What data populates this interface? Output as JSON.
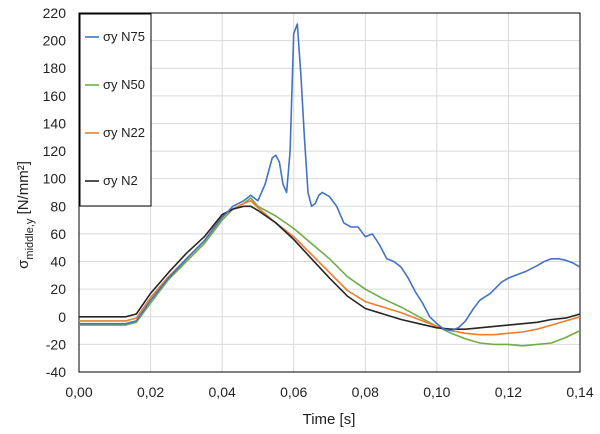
{
  "chart_data": {
    "type": "line",
    "xlabel": "Time [s]",
    "ylabel_main": "σ",
    "ylabel_sub": "middle,y",
    "ylabel_unit": " [N/mm²]",
    "xlim": [
      0,
      0.14
    ],
    "ylim": [
      -40,
      220
    ],
    "x_ticks": [
      0,
      0.02,
      0.04,
      0.06,
      0.08,
      0.1,
      0.12,
      0.14
    ],
    "x_tick_labels": [
      "0,00",
      "0,02",
      "0,04",
      "0,06",
      "0,08",
      "0,10",
      "0,12",
      "0,14"
    ],
    "y_ticks": [
      -40,
      -20,
      0,
      20,
      40,
      60,
      80,
      100,
      120,
      140,
      160,
      180,
      200,
      220
    ],
    "y_tick_labels": [
      "-40",
      "-20",
      "0",
      "20",
      "40",
      "60",
      "80",
      "100",
      "120",
      "140",
      "160",
      "180",
      "200",
      "220"
    ],
    "grid": true,
    "legend_position": "top-left",
    "series": [
      {
        "name": "σy N75",
        "color": "#4472c4",
        "x": [
          0,
          0.013,
          0.016,
          0.02,
          0.025,
          0.03,
          0.035,
          0.04,
          0.043,
          0.046,
          0.048,
          0.05,
          0.052,
          0.054,
          0.055,
          0.056,
          0.057,
          0.058,
          0.059,
          0.06,
          0.061,
          0.062,
          0.063,
          0.064,
          0.065,
          0.066,
          0.067,
          0.068,
          0.07,
          0.072,
          0.074,
          0.076,
          0.078,
          0.08,
          0.082,
          0.084,
          0.086,
          0.088,
          0.09,
          0.092,
          0.094,
          0.096,
          0.098,
          0.1,
          0.102,
          0.104,
          0.106,
          0.108,
          0.11,
          0.112,
          0.115,
          0.118,
          0.12,
          0.122,
          0.125,
          0.128,
          0.13,
          0.132,
          0.134,
          0.136,
          0.138,
          0.14
        ],
        "y": [
          -5,
          -5,
          -3,
          12,
          28,
          42,
          55,
          72,
          80,
          84,
          88,
          84,
          96,
          115,
          117,
          112,
          96,
          90,
          120,
          205,
          212,
          175,
          130,
          90,
          80,
          82,
          88,
          90,
          87,
          80,
          68,
          65,
          65,
          58,
          60,
          52,
          42,
          40,
          36,
          28,
          18,
          10,
          0,
          -5,
          -9,
          -10,
          -8,
          -3,
          5,
          12,
          17,
          25,
          28,
          30,
          33,
          37,
          40,
          42,
          42,
          41,
          39,
          36
        ]
      },
      {
        "name": "σy N50",
        "color": "#70ad47",
        "x": [
          0,
          0.013,
          0.016,
          0.02,
          0.025,
          0.03,
          0.035,
          0.04,
          0.043,
          0.046,
          0.048,
          0.05,
          0.055,
          0.06,
          0.065,
          0.07,
          0.075,
          0.08,
          0.085,
          0.09,
          0.095,
          0.1,
          0.104,
          0.108,
          0.112,
          0.116,
          0.12,
          0.124,
          0.128,
          0.132,
          0.136,
          0.14
        ],
        "y": [
          -6,
          -6,
          -4,
          10,
          27,
          40,
          53,
          70,
          78,
          82,
          86,
          80,
          73,
          64,
          53,
          42,
          29,
          20,
          13,
          7,
          0,
          -7,
          -12,
          -16,
          -19,
          -20,
          -20,
          -21,
          -20,
          -19,
          -15,
          -10
        ]
      },
      {
        "name": "σy N22",
        "color": "#ed7d31",
        "x": [
          0,
          0.013,
          0.016,
          0.02,
          0.025,
          0.03,
          0.035,
          0.04,
          0.043,
          0.046,
          0.048,
          0.05,
          0.055,
          0.06,
          0.065,
          0.07,
          0.075,
          0.08,
          0.085,
          0.09,
          0.095,
          0.1,
          0.104,
          0.108,
          0.112,
          0.116,
          0.12,
          0.124,
          0.128,
          0.132,
          0.136,
          0.14
        ],
        "y": [
          -3,
          -3,
          -1,
          14,
          29,
          42,
          55,
          73,
          78,
          82,
          84,
          79,
          68,
          58,
          45,
          32,
          19,
          11,
          7,
          3,
          -2,
          -7,
          -10,
          -12,
          -13,
          -13,
          -12,
          -11,
          -9,
          -6,
          -3,
          0
        ]
      },
      {
        "name": "σy N2",
        "color": "#262626",
        "x": [
          0,
          0.013,
          0.016,
          0.02,
          0.025,
          0.03,
          0.035,
          0.04,
          0.043,
          0.046,
          0.048,
          0.05,
          0.055,
          0.06,
          0.065,
          0.07,
          0.075,
          0.08,
          0.085,
          0.09,
          0.095,
          0.1,
          0.104,
          0.108,
          0.112,
          0.116,
          0.12,
          0.124,
          0.128,
          0.132,
          0.136,
          0.14
        ],
        "y": [
          0,
          0,
          2,
          17,
          32,
          46,
          58,
          74,
          78,
          80,
          80,
          77,
          68,
          56,
          42,
          28,
          15,
          6,
          2,
          -2,
          -5,
          -8,
          -9,
          -9,
          -8,
          -7,
          -6,
          -5,
          -4,
          -2,
          -1,
          2
        ]
      }
    ]
  }
}
